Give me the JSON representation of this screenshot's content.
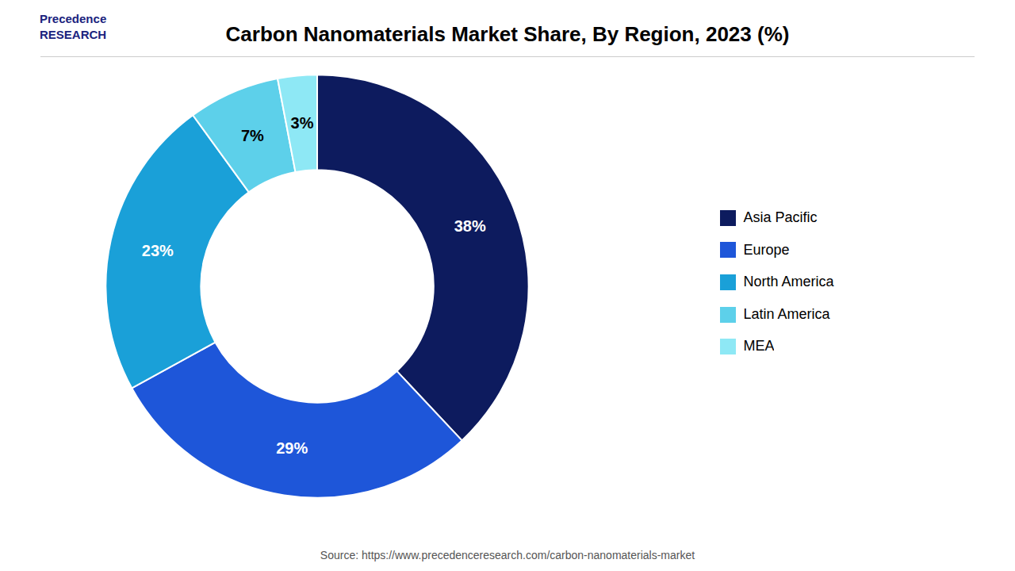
{
  "chart_data": {
    "type": "pie",
    "title": "Carbon Nanomaterials Market Share, By Region, 2023 (%)",
    "categories": [
      "Asia Pacific",
      "Europe",
      "North America",
      "Latin America",
      "MEA"
    ],
    "values": [
      38,
      29,
      23,
      7,
      3
    ],
    "value_labels": [
      "38%",
      "29%",
      "23%",
      "7%",
      "3%"
    ],
    "colors": [
      "#0d1b5e",
      "#1e56d9",
      "#1aa0d8",
      "#5dd0ea",
      "#8ee8f5"
    ],
    "data_labels": true,
    "legend": "right",
    "caption": "Source: https://www.precedenceresearch.com/carbon-nanomaterials-market",
    "annotations": [
      "Precedence\nRESEARCH"
    ]
  }
}
